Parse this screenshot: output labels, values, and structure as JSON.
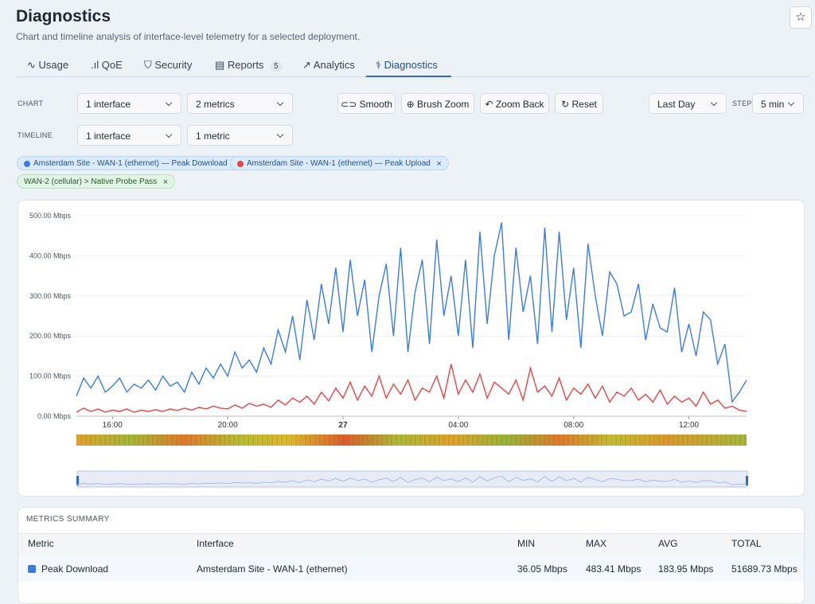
{
  "header": {
    "title": "Diagnostics",
    "subtitle": "Chart and timeline analysis of interface-level telemetry for a selected deployment."
  },
  "tabs": [
    "Usage",
    "QoE",
    "Security",
    "Reports",
    "Analytics",
    "Diagnostics"
  ],
  "reports_badge": "5",
  "controls": {
    "chart_label": "CHART",
    "timeline_label": "TIMELINE",
    "chart_interface": "1 interface",
    "chart_metrics": "2 metrics",
    "timeline_interface": "1 interface",
    "timeline_metric": "1 metric",
    "buttons": [
      "Smooth",
      "Brush Zoom",
      "Zoom Back",
      "Reset"
    ],
    "range": "Last Day",
    "step_label": "STEP",
    "step": "5 min"
  },
  "filters": [
    "Amsterdam Site - WAN-1 (ethernet) — Peak Download",
    "Amsterdam Site - WAN-1 (ethernet) — Peak Upload",
    "WAN-2 (cellular) > Native Probe Pass"
  ],
  "chart_data": {
    "type": "line",
    "categories": [
      null,
      null,
      null,
      null,
      null,
      "16:00",
      null,
      null,
      null,
      null,
      null,
      null,
      null,
      null,
      null,
      null,
      null,
      null,
      null,
      null,
      null,
      "20:00",
      null,
      null,
      null,
      null,
      null,
      null,
      null,
      null,
      null,
      null,
      null,
      null,
      null,
      null,
      null,
      "27",
      null,
      null,
      null,
      null,
      null,
      null,
      null,
      null,
      null,
      null,
      null,
      null,
      null,
      null,
      null,
      "04:00",
      null,
      null,
      null,
      null,
      null,
      null,
      null,
      null,
      null,
      null,
      null,
      null,
      null,
      null,
      null,
      "08:00",
      null,
      null,
      null,
      null,
      null,
      null,
      null,
      null,
      null,
      null,
      null,
      null,
      null,
      null,
      null,
      "12:00",
      null,
      null,
      null,
      null,
      null,
      null,
      null,
      null
    ],
    "series": [
      {
        "name": "Peak Download",
        "color": "#3b7ddd",
        "values": [
          50,
          95,
          70,
          100,
          60,
          75,
          95,
          60,
          80,
          70,
          90,
          65,
          100,
          75,
          85,
          60,
          110,
          80,
          120,
          95,
          130,
          100,
          160,
          120,
          140,
          110,
          170,
          130,
          215,
          160,
          250,
          140,
          290,
          190,
          330,
          230,
          370,
          210,
          390,
          250,
          340,
          160,
          300,
          380,
          200,
          420,
          160,
          310,
          390,
          180,
          440,
          250,
          350,
          200,
          390,
          170,
          460,
          230,
          400,
          483,
          190,
          420,
          260,
          350,
          180,
          470,
          210,
          460,
          240,
          370,
          170,
          430,
          300,
          200,
          360,
          330,
          250,
          260,
          330,
          190,
          280,
          220,
          210,
          320,
          160,
          230,
          150,
          260,
          240,
          130,
          180,
          36,
          60,
          90
        ]
      },
      {
        "name": "Peak Upload",
        "color": "#e04848",
        "values": [
          10,
          20,
          12,
          18,
          10,
          15,
          12,
          18,
          10,
          15,
          12,
          16,
          12,
          18,
          14,
          20,
          15,
          22,
          18,
          25,
          20,
          18,
          28,
          20,
          32,
          25,
          30,
          22,
          40,
          28,
          45,
          35,
          50,
          30,
          60,
          38,
          70,
          45,
          85,
          40,
          75,
          50,
          100,
          45,
          80,
          55,
          90,
          40,
          70,
          60,
          100,
          45,
          130,
          55,
          90,
          60,
          105,
          45,
          85,
          70,
          55,
          90,
          40,
          120,
          60,
          75,
          50,
          95,
          40,
          70,
          55,
          80,
          45,
          75,
          35,
          60,
          50,
          70,
          40,
          55,
          35,
          65,
          30,
          50,
          35,
          45,
          25,
          60,
          30,
          40,
          20,
          25,
          15,
          12
        ]
      }
    ],
    "ylim": [
      0,
      500
    ],
    "yticks": [
      {
        "value": 0,
        "label": "0.00 Mbps"
      },
      {
        "value": 100,
        "label": "100.00 Mbps"
      },
      {
        "value": 200,
        "label": "200.00 Mbps"
      },
      {
        "value": 300,
        "label": "300.00 Mbps"
      },
      {
        "value": 400,
        "label": "400.00 Mbps"
      },
      {
        "value": 500,
        "label": "500.00 Mbps"
      }
    ],
    "grid": true
  },
  "summary": {
    "title": "METRICS SUMMARY",
    "columns": [
      "Metric",
      "Interface",
      "MIN",
      "MAX",
      "AVG",
      "TOTAL"
    ],
    "rows": [
      [
        "Peak Download",
        "Amsterdam Site - WAN-1 (ethernet)",
        "36.05 Mbps",
        "483.41 Mbps",
        "183.95 Mbps",
        "51689.73 Mbps"
      ]
    ]
  }
}
